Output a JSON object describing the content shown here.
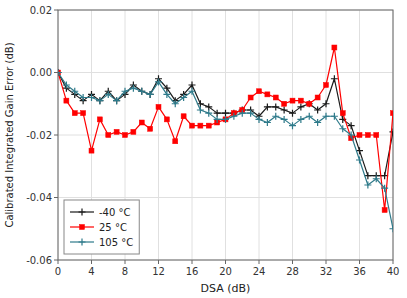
{
  "chart_data": {
    "type": "line",
    "xlabel": "DSA (dB)",
    "ylabel": "Calibrated Integrated Gain Error (dB)",
    "xlim": [
      0,
      40
    ],
    "ylim": [
      -0.06,
      0.02
    ],
    "xticks": [
      0,
      4,
      8,
      12,
      16,
      20,
      24,
      28,
      32,
      36,
      40
    ],
    "yticks": [
      -0.06,
      -0.04,
      -0.02,
      {
        "value": 0,
        "label": "0.00"
      },
      0.02
    ],
    "grid": true,
    "legend": "lower left",
    "x": [
      0,
      1,
      2,
      3,
      4,
      5,
      6,
      7,
      8,
      9,
      10,
      11,
      12,
      13,
      14,
      15,
      16,
      17,
      18,
      19,
      20,
      21,
      22,
      23,
      24,
      25,
      26,
      27,
      28,
      29,
      30,
      31,
      32,
      33,
      34,
      35,
      36,
      37,
      38,
      39,
      40
    ],
    "series": [
      {
        "name": "-40 °C",
        "color": "#1a1a1a",
        "marker": "plus",
        "values": [
          0.0,
          -0.005,
          -0.007,
          -0.009,
          -0.007,
          -0.009,
          -0.006,
          -0.009,
          -0.007,
          -0.004,
          -0.006,
          -0.007,
          -0.002,
          -0.005,
          -0.009,
          -0.007,
          -0.004,
          -0.01,
          -0.011,
          -0.013,
          -0.013,
          -0.013,
          -0.012,
          -0.012,
          -0.014,
          -0.011,
          -0.011,
          -0.012,
          -0.013,
          -0.011,
          -0.01,
          -0.012,
          -0.01,
          -0.002,
          -0.015,
          -0.017,
          -0.025,
          -0.033,
          -0.033,
          -0.033,
          -0.019
        ]
      },
      {
        "name": "25 °C",
        "color": "#ff0000",
        "marker": "square",
        "values": [
          0.0,
          -0.009,
          -0.013,
          -0.013,
          -0.025,
          -0.015,
          -0.02,
          -0.019,
          -0.02,
          -0.019,
          -0.016,
          -0.018,
          -0.011,
          -0.015,
          -0.022,
          -0.014,
          -0.017,
          -0.017,
          -0.017,
          -0.016,
          -0.015,
          -0.013,
          -0.012,
          -0.008,
          -0.006,
          -0.007,
          -0.008,
          -0.01,
          -0.009,
          -0.009,
          -0.01,
          -0.008,
          -0.004,
          0.008,
          -0.013,
          -0.021,
          -0.02,
          -0.02,
          -0.02,
          -0.044,
          -0.013
        ]
      },
      {
        "name": "105 °C",
        "color": "#2e7a8a",
        "marker": "plus",
        "values": [
          0.0,
          -0.004,
          -0.006,
          -0.008,
          -0.008,
          -0.009,
          -0.007,
          -0.009,
          -0.006,
          -0.005,
          -0.006,
          -0.007,
          -0.003,
          -0.007,
          -0.01,
          -0.008,
          -0.006,
          -0.012,
          -0.013,
          -0.015,
          -0.015,
          -0.014,
          -0.013,
          -0.013,
          -0.015,
          -0.016,
          -0.014,
          -0.015,
          -0.017,
          -0.015,
          -0.014,
          -0.016,
          -0.014,
          -0.014,
          -0.018,
          -0.02,
          -0.028,
          -0.036,
          -0.034,
          -0.037,
          -0.05
        ]
      }
    ]
  }
}
